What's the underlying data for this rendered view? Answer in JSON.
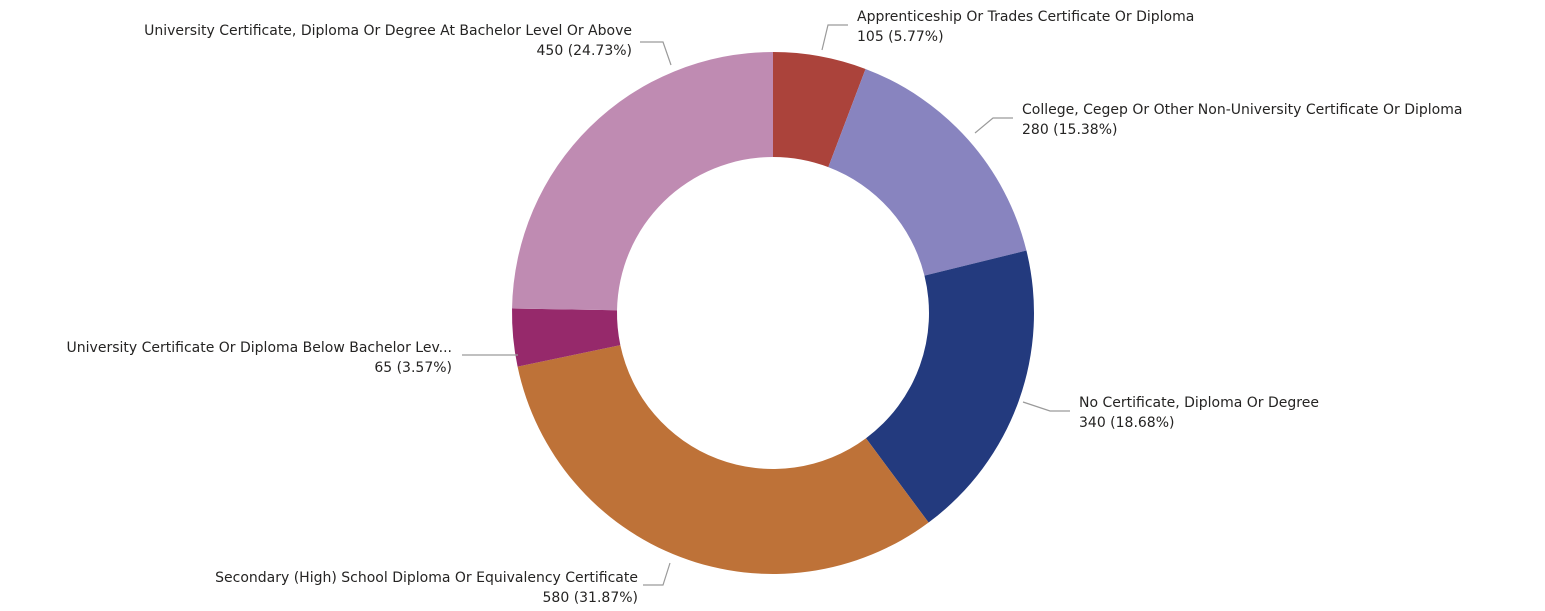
{
  "chart_data": {
    "type": "donut",
    "categories": [
      "Apprenticeship Or Trades Certificate Or Diploma",
      "College, Cegep Or Other Non-University Certificate Or Diploma",
      "No Certificate, Diploma Or Degree",
      "Secondary (High) School Diploma Or Equivalency Certificate",
      "University Certificate Or Diploma Below Bachelor Lev...",
      "University Certificate, Diploma Or Degree At Bachelor Level Or Above"
    ],
    "values": [
      105,
      280,
      340,
      580,
      65,
      450
    ],
    "value_labels": [
      "105 (5.77%)",
      "280 (15.38%)",
      "340 (18.68%)",
      "580 (31.87%)",
      "65 (3.57%)",
      "450 (24.73%)"
    ],
    "colors": [
      "#ab433b",
      "#8884bf",
      "#233a7e",
      "#be7238",
      "#96296b",
      "#bf8bb2"
    ]
  }
}
